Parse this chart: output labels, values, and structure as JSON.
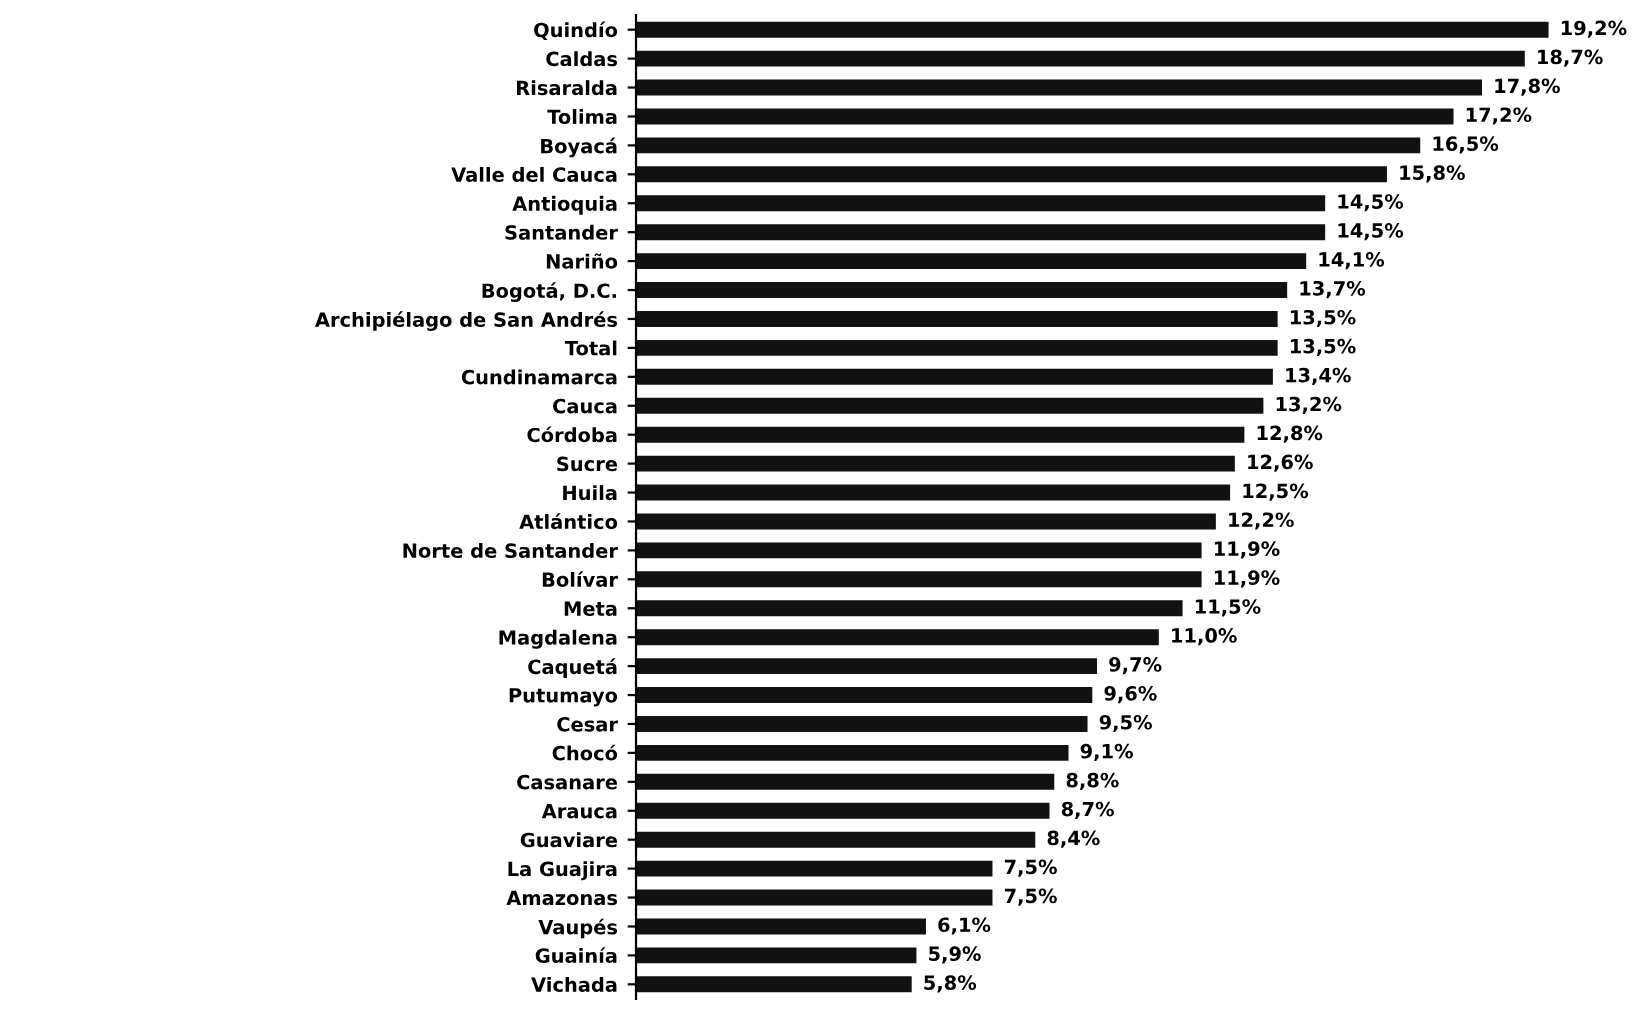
{
  "chart_data": {
    "type": "bar",
    "orientation": "horizontal",
    "color": "#111111",
    "categories": [
      "Quindío",
      "Caldas",
      "Risaralda",
      "Tolima",
      "Boyacá",
      "Valle del Cauca",
      "Antioquia",
      "Santander",
      "Nariño",
      "Bogotá, D.C.",
      "Archipiélago de San Andrés",
      "Total",
      "Cundinamarca",
      "Cauca",
      "Córdoba",
      "Sucre",
      "Huila",
      "Atlántico",
      "Norte de Santander",
      "Bolívar",
      "Meta",
      "Magdalena",
      "Caquetá",
      "Putumayo",
      "Cesar",
      "Chocó",
      "Casanare",
      "Arauca",
      "Guaviare",
      "La Guajira",
      "Amazonas",
      "Vaupés",
      "Guainía",
      "Vichada"
    ],
    "values": [
      19.2,
      18.7,
      17.8,
      17.2,
      16.5,
      15.8,
      14.5,
      14.5,
      14.1,
      13.7,
      13.5,
      13.5,
      13.4,
      13.2,
      12.8,
      12.6,
      12.5,
      12.2,
      11.9,
      11.9,
      11.5,
      11.0,
      9.7,
      9.6,
      9.5,
      9.1,
      8.8,
      8.7,
      8.4,
      7.5,
      7.5,
      6.1,
      5.9,
      5.8
    ],
    "value_labels": [
      "19,2%",
      "18,7%",
      "17,8%",
      "17,2%",
      "16,5%",
      "15,8%",
      "14,5%",
      "14,5%",
      "14,1%",
      "13,7%",
      "13,5%",
      "13,5%",
      "13,4%",
      "13,2%",
      "12,8%",
      "12,6%",
      "12,5%",
      "12,2%",
      "11,9%",
      "11,9%",
      "11,5%",
      "11,0%",
      "9,7%",
      "9,6%",
      "9,5%",
      "9,1%",
      "8,8%",
      "8,7%",
      "8,4%",
      "7,5%",
      "7,5%",
      "6,1%",
      "5,9%",
      "5,8%"
    ]
  }
}
